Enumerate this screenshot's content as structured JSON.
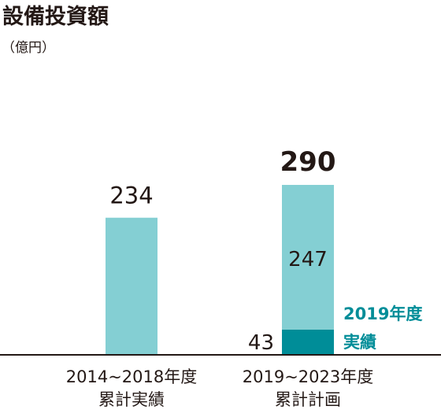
{
  "chart_data": {
    "type": "bar",
    "title": "設備投資額",
    "unit": "（億円）",
    "categories": [
      {
        "line1": "2014~2018年度",
        "line2": "累計実績"
      },
      {
        "line1": "2019~2023年度",
        "line2": "累計計画"
      }
    ],
    "bars": [
      {
        "total": 234,
        "total_label": "234",
        "segments": [
          {
            "value": 234,
            "color": "#84cfd3"
          }
        ]
      },
      {
        "total": 290,
        "total_label": "290",
        "segments": [
          {
            "value": 43,
            "label": "43",
            "color": "#008d98"
          },
          {
            "value": 247,
            "label": "247",
            "color": "#84cfd3"
          }
        ]
      }
    ],
    "annotation": {
      "line1": "2019年度",
      "line2": "実績",
      "color": "#008d98"
    }
  }
}
